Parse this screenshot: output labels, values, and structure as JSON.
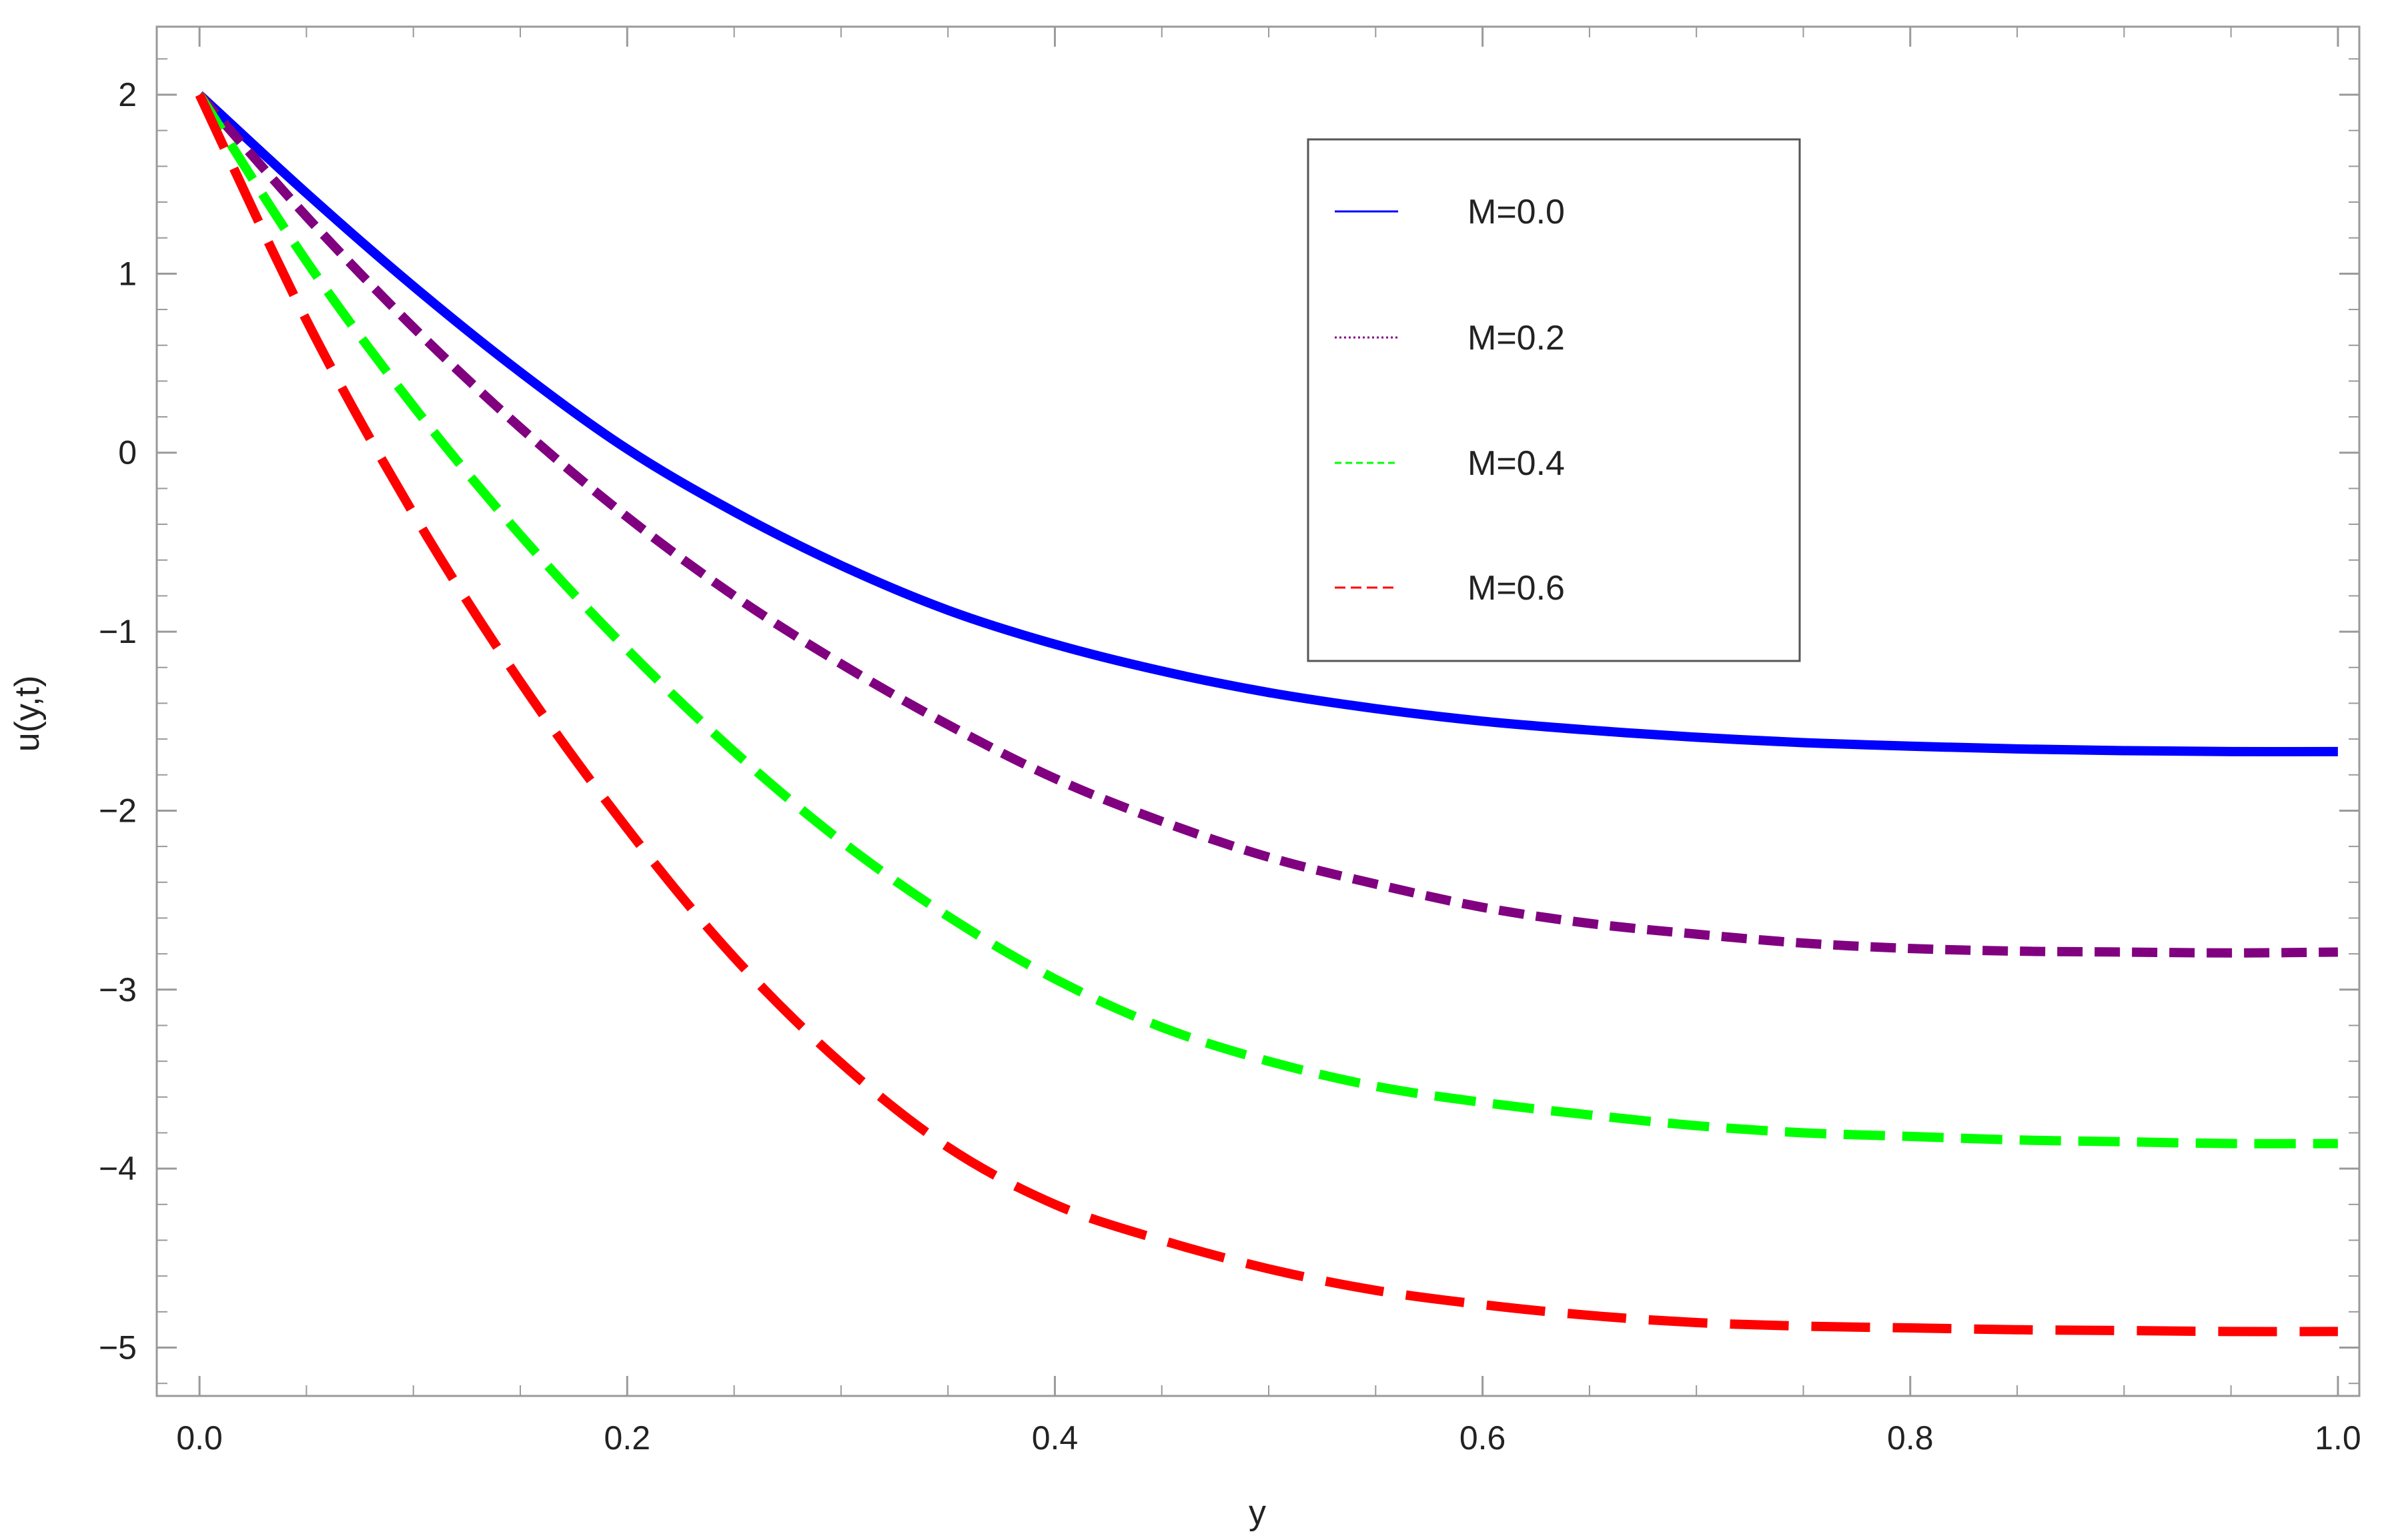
{
  "chart_data": {
    "type": "line",
    "title": "",
    "xlabel": "y",
    "ylabel": "u(y,t)",
    "xlim": [
      -0.02,
      1.01
    ],
    "ylim": [
      -5.27,
      2.38
    ],
    "xticks": [
      0.0,
      0.2,
      0.4,
      0.6,
      0.8,
      1.0
    ],
    "xtick_labels": [
      "0.0",
      "0.2",
      "0.4",
      "0.6",
      "0.8",
      "1.0"
    ],
    "yticks": [
      2,
      1,
      0,
      -1,
      -2,
      -3,
      -4,
      -5
    ],
    "ytick_labels": [
      "2",
      "1",
      "0",
      "−1",
      "−2",
      "−3",
      "−4",
      "−5"
    ],
    "grid": false,
    "legend_position": "top-right",
    "x": [
      0.0,
      0.05,
      0.1,
      0.15,
      0.2,
      0.25,
      0.3,
      0.35,
      0.4,
      0.45,
      0.5,
      0.55,
      0.6,
      0.65,
      0.7,
      0.75,
      0.8,
      0.85,
      0.9,
      0.95,
      1.0
    ],
    "series": [
      {
        "name": "M=0.0",
        "color": "#0000ff",
        "dash": "solid",
        "values": [
          2.0,
          1.45,
          0.93,
          0.45,
          0.02,
          -0.33,
          -0.63,
          -0.88,
          -1.07,
          -1.22,
          -1.34,
          -1.43,
          -1.5,
          -1.55,
          -1.59,
          -1.62,
          -1.64,
          -1.655,
          -1.665,
          -1.67,
          -1.67
        ]
      },
      {
        "name": "M=0.2",
        "color": "#800080",
        "dash": "dotted",
        "values": [
          2.0,
          1.32,
          0.7,
          0.14,
          -0.36,
          -0.8,
          -1.18,
          -1.52,
          -1.82,
          -2.06,
          -2.26,
          -2.41,
          -2.54,
          -2.63,
          -2.69,
          -2.74,
          -2.77,
          -2.785,
          -2.79,
          -2.795,
          -2.79
        ]
      },
      {
        "name": "M=0.4",
        "color": "#00ff00",
        "dash": "dashed",
        "values": [
          2.0,
          1.07,
          0.26,
          -0.46,
          -1.1,
          -1.67,
          -2.17,
          -2.59,
          -2.94,
          -3.21,
          -3.4,
          -3.54,
          -3.63,
          -3.7,
          -3.76,
          -3.8,
          -3.82,
          -3.84,
          -3.85,
          -3.86,
          -3.86
        ]
      },
      {
        "name": "M=0.6",
        "color": "#ff0000",
        "dash": "longdashed",
        "values": [
          2.0,
          0.74,
          -0.34,
          -1.28,
          -2.1,
          -2.82,
          -3.41,
          -3.88,
          -4.2,
          -4.4,
          -4.56,
          -4.68,
          -4.76,
          -4.82,
          -4.86,
          -4.88,
          -4.89,
          -4.9,
          -4.905,
          -4.91,
          -4.91
        ]
      }
    ]
  }
}
